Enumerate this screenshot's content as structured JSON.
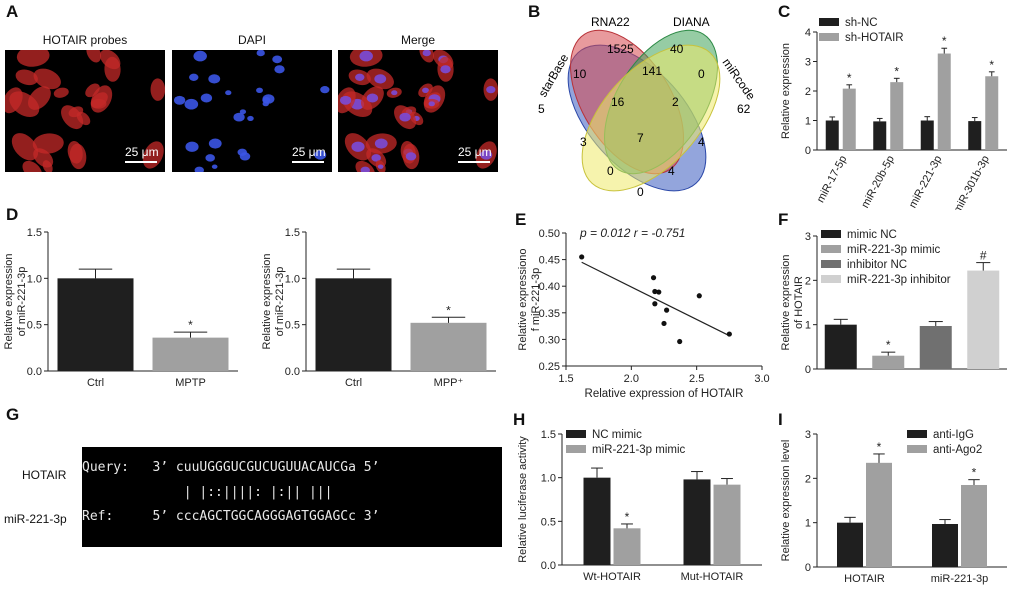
{
  "panels": {
    "A": {
      "letter": "A",
      "images": [
        {
          "label": "HOTAIR probes",
          "scale": "25 μm",
          "tint": "#d0302a"
        },
        {
          "label": "DAPI",
          "scale": "25 μm",
          "tint": "#2f47d6"
        },
        {
          "label": "Merge",
          "scale": "25 μm",
          "tint": "#c23a55"
        }
      ]
    },
    "B": {
      "letter": "B",
      "sets": [
        "starBase",
        "RNA22",
        "DIANA",
        "miRcode"
      ],
      "regions": [
        "5",
        "1525",
        "40",
        "62",
        "10",
        "141",
        "0",
        "16",
        "2",
        "3",
        "7",
        "4",
        "0",
        "4",
        "0"
      ]
    },
    "C": {
      "letter": "C"
    },
    "D": {
      "letter": "D"
    },
    "E": {
      "letter": "E",
      "stats": "p = 0.012   r = -0.751"
    },
    "F": {
      "letter": "F"
    },
    "G": {
      "letter": "G",
      "query_label": "HOTAIR",
      "ref_label": "miR-221-3p",
      "query_line": "Query:   3’ cuuUGGGUCGUCUGUUACAUCGa 5’",
      "match_line": "             | |::||||: |:|| |||",
      "ref_line": "Ref:     5’ cccAGCTGGCAGGGAGTGGAGCc 3’"
    },
    "H": {
      "letter": "H"
    },
    "I": {
      "letter": "I"
    }
  },
  "chart_data": [
    {
      "id": "C",
      "type": "bar",
      "categories": [
        "miR-17-5p",
        "miR-20b-5p",
        "miR-221-3p",
        "miR-301b-3p"
      ],
      "series": [
        {
          "name": "sh-NC",
          "values": [
            1.0,
            0.97,
            1.0,
            0.98
          ],
          "errors": [
            0.12,
            0.1,
            0.13,
            0.12
          ],
          "color": "#1f1f1f"
        },
        {
          "name": "sh-HOTAIR",
          "values": [
            2.08,
            2.3,
            3.27,
            2.5
          ],
          "errors": [
            0.13,
            0.13,
            0.18,
            0.15
          ],
          "color": "#a0a0a0"
        }
      ],
      "significance": [
        [
          "",
          "*"
        ],
        [
          "",
          "*"
        ],
        [
          "",
          "*"
        ],
        [
          "",
          "*"
        ]
      ],
      "ylabel": "Relative expression",
      "xlabel": "",
      "ylim": [
        0,
        4
      ],
      "yticks": [
        "0",
        "1",
        "2",
        "3",
        "4"
      ],
      "legend": "top-left"
    },
    {
      "id": "D1",
      "type": "bar",
      "categories": [
        "Ctrl",
        "MPTP"
      ],
      "series": [
        {
          "name": "",
          "values": [
            1.0,
            0.36
          ],
          "errors": [
            0.1,
            0.06
          ],
          "colors": [
            "#1f1f1f",
            "#a0a0a0"
          ]
        }
      ],
      "significance": [
        [
          ""
        ],
        [
          "*"
        ]
      ],
      "ylabel": "Relative expression of miR-221-3p",
      "ylim": [
        0,
        1.5
      ],
      "yticks": [
        "0.0",
        "0.5",
        "1.0",
        "1.5"
      ]
    },
    {
      "id": "D2",
      "type": "bar",
      "categories": [
        "Ctrl",
        "MPP⁺"
      ],
      "series": [
        {
          "name": "",
          "values": [
            1.0,
            0.52
          ],
          "errors": [
            0.1,
            0.06
          ],
          "colors": [
            "#1f1f1f",
            "#a0a0a0"
          ]
        }
      ],
      "significance": [
        [
          ""
        ],
        [
          "*"
        ]
      ],
      "ylabel": "Relative expression of miR-221-3p",
      "ylim": [
        0,
        1.5
      ],
      "yticks": [
        "0.0",
        "0.5",
        "1.0",
        "1.5"
      ]
    },
    {
      "id": "E",
      "type": "scatter",
      "points": [
        [
          1.62,
          0.455
        ],
        [
          2.17,
          0.416
        ],
        [
          2.18,
          0.39
        ],
        [
          2.21,
          0.389
        ],
        [
          2.18,
          0.367
        ],
        [
          2.27,
          0.355
        ],
        [
          2.25,
          0.33
        ],
        [
          2.37,
          0.296
        ],
        [
          2.52,
          0.382
        ],
        [
          2.75,
          0.31
        ]
      ],
      "fit": [
        [
          1.62,
          0.445
        ],
        [
          2.75,
          0.307
        ]
      ],
      "xlabel": "Relative expression of HOTAIR",
      "ylabel": "Relative expressiono f miR-221-3p",
      "xlim": [
        1.5,
        3.0
      ],
      "ylim": [
        0.25,
        0.5
      ],
      "xticks": [
        "1.5",
        "2.0",
        "2.5",
        "3.0"
      ],
      "yticks": [
        "0.25",
        "0.30",
        "0.35",
        "0.40",
        "0.45",
        "0.50"
      ]
    },
    {
      "id": "F",
      "type": "bar",
      "categories": [
        "mimic NC",
        "miR-221-3p mimic",
        "inhibitor NC",
        "miR-221-3p inhibitor"
      ],
      "series": [
        {
          "name": "",
          "values": [
            1.0,
            0.3,
            0.97,
            2.22
          ],
          "errors": [
            0.12,
            0.08,
            0.1,
            0.18
          ],
          "colors": [
            "#1f1f1f",
            "#a0a0a0",
            "#707070",
            "#d0d0d0"
          ]
        }
      ],
      "significance": [
        [
          ""
        ],
        [
          "*"
        ],
        [
          ""
        ],
        [
          "#"
        ]
      ],
      "legend_entries": [
        "mimic NC",
        "miR-221-3p mimic",
        "inhibitor NC",
        "miR-221-3p inhibitor"
      ],
      "ylabel": "Relative expression of HOTAIR",
      "ylim": [
        0,
        3
      ],
      "yticks": [
        "0",
        "1",
        "2",
        "3"
      ],
      "legend": "top"
    },
    {
      "id": "H",
      "type": "bar",
      "categories": [
        "Wt-HOTAIR",
        "Mut-HOTAIR"
      ],
      "series": [
        {
          "name": "NC mimic",
          "values": [
            1.0,
            0.98
          ],
          "errors": [
            0.11,
            0.09
          ],
          "color": "#1f1f1f"
        },
        {
          "name": "miR-221-3p mimic",
          "values": [
            0.42,
            0.92
          ],
          "errors": [
            0.05,
            0.07
          ],
          "color": "#a0a0a0"
        }
      ],
      "significance": [
        [
          "",
          "*"
        ],
        [
          "",
          ""
        ]
      ],
      "ylabel": "Relative luciferase activity",
      "ylim": [
        0,
        1.5
      ],
      "yticks": [
        "0.0",
        "0.5",
        "1.0",
        "1.5"
      ],
      "legend": "top-left"
    },
    {
      "id": "I",
      "type": "bar",
      "categories": [
        "HOTAIR",
        "miR-221-3p"
      ],
      "series": [
        {
          "name": "anti-IgG",
          "values": [
            1.0,
            0.97
          ],
          "errors": [
            0.12,
            0.1
          ],
          "color": "#1f1f1f"
        },
        {
          "name": "anti-Ago2",
          "values": [
            2.35,
            1.85
          ],
          "errors": [
            0.2,
            0.12
          ],
          "color": "#a0a0a0"
        }
      ],
      "significance": [
        [
          "",
          "*"
        ],
        [
          "",
          "*"
        ]
      ],
      "ylabel": "Relative expression level",
      "ylim": [
        0,
        3
      ],
      "yticks": [
        "0",
        "1",
        "2",
        "3"
      ],
      "legend": "top-left"
    }
  ]
}
